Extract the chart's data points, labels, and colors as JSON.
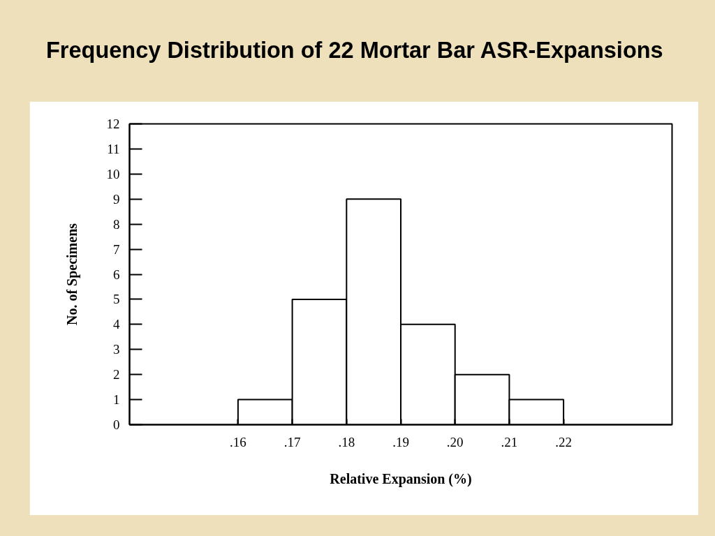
{
  "chart_data": {
    "type": "histogram",
    "title": "Frequency Distribution of 22 Mortar Bar ASR-Expansions",
    "xlabel": "Relative Expansion (%)",
    "ylabel": "No. of Specimens",
    "bins": [
      0.16,
      0.17,
      0.18,
      0.19,
      0.2,
      0.21,
      0.22
    ],
    "values": [
      1,
      5,
      9,
      4,
      2,
      1
    ],
    "color": "#ffffff",
    "xlim": [
      0.14,
      0.24
    ],
    "xticks": [
      {
        "value": 0.16,
        "label": ".16"
      },
      {
        "value": 0.17,
        "label": ".17"
      },
      {
        "value": 0.18,
        "label": ".18"
      },
      {
        "value": 0.19,
        "label": ".19"
      },
      {
        "value": 0.2,
        "label": ".20"
      },
      {
        "value": 0.21,
        "label": ".21"
      },
      {
        "value": 0.22,
        "label": ".22"
      }
    ],
    "ylim": [
      0,
      12
    ],
    "yticks": [
      0,
      1,
      2,
      3,
      4,
      5,
      6,
      7,
      8,
      9,
      10,
      11,
      12
    ]
  }
}
